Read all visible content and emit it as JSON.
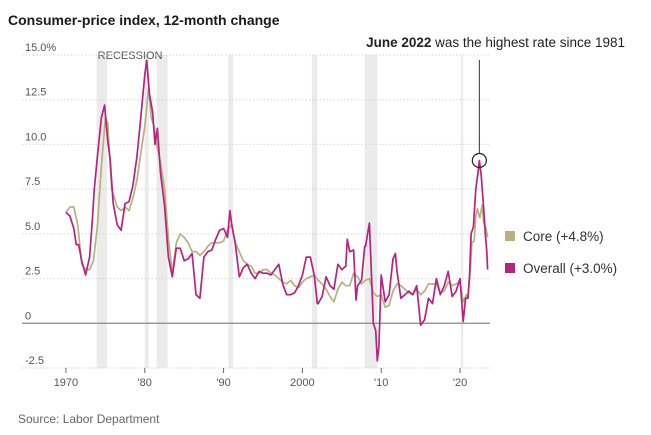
{
  "chart_data": {
    "type": "line",
    "title": "Consumer-price index, 12-month change",
    "xlabel": "",
    "ylabel": "",
    "xlim": [
      1969.5,
      2023.8
    ],
    "ylim": [
      -2.5,
      15
    ],
    "y_ticks": [
      -2.5,
      0,
      2.5,
      5,
      7.5,
      10,
      12.5,
      15
    ],
    "y_tick_labels": [
      "-2.5",
      "0",
      "2.5",
      "5.0",
      "7.5",
      "10.0",
      "12.5",
      "15.0%"
    ],
    "x_ticks": [
      1970,
      1980,
      1990,
      2000,
      2010,
      2020
    ],
    "x_tick_labels": [
      "1970",
      "'80",
      "'90",
      "2000",
      "'10",
      "'20"
    ],
    "grid": true,
    "recession_label": "RECESSION",
    "recessions": [
      [
        1973.9,
        1975.2
      ],
      [
        1980.0,
        1980.5
      ],
      [
        1981.5,
        1982.9
      ],
      [
        1990.6,
        1991.2
      ],
      [
        2001.2,
        2001.9
      ],
      [
        2007.9,
        2009.5
      ],
      [
        2020.1,
        2020.4
      ]
    ],
    "annotation": {
      "bold": "June 2022",
      "text": " was the highest rate since 1981",
      "x": 2022.45,
      "y": 9.1
    },
    "series": [
      {
        "name": "Core",
        "legend_label": "Core (+4.8%)",
        "color": "#b8b07f",
        "points": [
          [
            1970,
            6.2
          ],
          [
            1970.5,
            6.5
          ],
          [
            1971,
            6.5
          ],
          [
            1971.5,
            5.5
          ],
          [
            1972,
            3.3
          ],
          [
            1972.5,
            3.0
          ],
          [
            1973,
            3.0
          ],
          [
            1973.5,
            3.5
          ],
          [
            1974,
            5.5
          ],
          [
            1974.5,
            8.8
          ],
          [
            1975,
            11.5
          ],
          [
            1975.3,
            11.2
          ],
          [
            1975.8,
            7.5
          ],
          [
            1976.5,
            6.5
          ],
          [
            1977,
            6.3
          ],
          [
            1977.5,
            6.5
          ],
          [
            1978,
            6.3
          ],
          [
            1978.5,
            7.0
          ],
          [
            1979,
            8.0
          ],
          [
            1979.5,
            9.5
          ],
          [
            1980,
            11.0
          ],
          [
            1980.5,
            13.2
          ],
          [
            1980.8,
            11.5
          ],
          [
            1981.2,
            11.0
          ],
          [
            1981.5,
            10.0
          ],
          [
            1982,
            9.0
          ],
          [
            1982.5,
            7.5
          ],
          [
            1983,
            4.8
          ],
          [
            1983.5,
            2.8
          ],
          [
            1984,
            4.5
          ],
          [
            1984.5,
            5.0
          ],
          [
            1985,
            4.8
          ],
          [
            1985.5,
            4.5
          ],
          [
            1986,
            4.0
          ],
          [
            1986.5,
            4.0
          ],
          [
            1987,
            3.8
          ],
          [
            1987.5,
            4.0
          ],
          [
            1988,
            4.3
          ],
          [
            1988.5,
            4.5
          ],
          [
            1989,
            4.5
          ],
          [
            1989.5,
            4.5
          ],
          [
            1990,
            4.6
          ],
          [
            1990.5,
            5.2
          ],
          [
            1991,
            5.5
          ],
          [
            1991.5,
            4.5
          ],
          [
            1992,
            4.0
          ],
          [
            1992.5,
            3.5
          ],
          [
            1993,
            3.3
          ],
          [
            1993.5,
            3.2
          ],
          [
            1994,
            2.8
          ],
          [
            1994.5,
            2.8
          ],
          [
            1995,
            3.0
          ],
          [
            1995.5,
            3.0
          ],
          [
            1996,
            2.8
          ],
          [
            1996.5,
            2.7
          ],
          [
            1997,
            2.5
          ],
          [
            1997.5,
            2.3
          ],
          [
            1998,
            2.2
          ],
          [
            1998.5,
            2.4
          ],
          [
            1999,
            2.1
          ],
          [
            1999.5,
            2.0
          ],
          [
            2000,
            2.3
          ],
          [
            2000.5,
            2.5
          ],
          [
            2001,
            2.6
          ],
          [
            2001.5,
            2.7
          ],
          [
            2002,
            2.4
          ],
          [
            2002.5,
            2.2
          ],
          [
            2003,
            1.9
          ],
          [
            2003.5,
            1.5
          ],
          [
            2004,
            1.2
          ],
          [
            2004.5,
            1.9
          ],
          [
            2005,
            2.3
          ],
          [
            2005.5,
            2.1
          ],
          [
            2006,
            2.1
          ],
          [
            2006.5,
            2.8
          ],
          [
            2007,
            2.6
          ],
          [
            2007.5,
            2.2
          ],
          [
            2008,
            2.4
          ],
          [
            2008.5,
            2.5
          ],
          [
            2009,
            1.7
          ],
          [
            2009.5,
            1.5
          ],
          [
            2010,
            1.6
          ],
          [
            2010.5,
            0.9
          ],
          [
            2011,
            1.0
          ],
          [
            2011.5,
            1.8
          ],
          [
            2012,
            2.2
          ],
          [
            2012.5,
            2.1
          ],
          [
            2013,
            1.9
          ],
          [
            2013.5,
            1.7
          ],
          [
            2014,
            1.6
          ],
          [
            2014.5,
            1.9
          ],
          [
            2015,
            1.6
          ],
          [
            2015.5,
            1.8
          ],
          [
            2016,
            2.2
          ],
          [
            2016.5,
            2.2
          ],
          [
            2017,
            2.2
          ],
          [
            2017.5,
            1.7
          ],
          [
            2018,
            1.8
          ],
          [
            2018.5,
            2.3
          ],
          [
            2019,
            2.1
          ],
          [
            2019.5,
            2.2
          ],
          [
            2020,
            2.3
          ],
          [
            2020.4,
            1.2
          ],
          [
            2020.8,
            1.6
          ],
          [
            2021,
            1.4
          ],
          [
            2021.3,
            3.0
          ],
          [
            2021.5,
            4.5
          ],
          [
            2021.8,
            4.6
          ],
          [
            2022,
            6.0
          ],
          [
            2022.2,
            6.4
          ],
          [
            2022.5,
            5.9
          ],
          [
            2022.8,
            6.6
          ],
          [
            2023,
            5.6
          ],
          [
            2023.3,
            5.3
          ],
          [
            2023.5,
            4.8
          ]
        ]
      },
      {
        "name": "Overall",
        "legend_label": "Overall (+3.0%)",
        "color": "#b8237e",
        "points": [
          [
            1970,
            6.2
          ],
          [
            1970.5,
            6.0
          ],
          [
            1971,
            5.3
          ],
          [
            1971.3,
            4.4
          ],
          [
            1971.6,
            4.4
          ],
          [
            1972,
            3.5
          ],
          [
            1972.5,
            2.7
          ],
          [
            1973,
            3.7
          ],
          [
            1973.3,
            5.5
          ],
          [
            1973.6,
            7.5
          ],
          [
            1974,
            9.4
          ],
          [
            1974.5,
            11.5
          ],
          [
            1974.9,
            12.2
          ],
          [
            1975.3,
            10.2
          ],
          [
            1975.6,
            9.2
          ],
          [
            1976,
            6.7
          ],
          [
            1976.5,
            5.5
          ],
          [
            1977,
            5.2
          ],
          [
            1977.5,
            6.7
          ],
          [
            1978,
            6.8
          ],
          [
            1978.5,
            7.7
          ],
          [
            1979,
            9.3
          ],
          [
            1979.5,
            11.5
          ],
          [
            1980,
            13.9
          ],
          [
            1980.25,
            14.7
          ],
          [
            1980.6,
            12.8
          ],
          [
            1981,
            11.8
          ],
          [
            1981.3,
            10.0
          ],
          [
            1981.6,
            10.9
          ],
          [
            1982,
            8.4
          ],
          [
            1982.5,
            6.6
          ],
          [
            1983,
            3.7
          ],
          [
            1983.5,
            2.6
          ],
          [
            1984,
            4.2
          ],
          [
            1984.5,
            4.2
          ],
          [
            1985,
            3.5
          ],
          [
            1985.5,
            3.6
          ],
          [
            1986,
            3.9
          ],
          [
            1986.5,
            1.6
          ],
          [
            1987,
            1.4
          ],
          [
            1987.5,
            3.7
          ],
          [
            1988,
            4.0
          ],
          [
            1988.5,
            4.1
          ],
          [
            1989,
            4.7
          ],
          [
            1989.5,
            5.2
          ],
          [
            1990,
            5.3
          ],
          [
            1990.5,
            4.8
          ],
          [
            1990.8,
            6.3
          ],
          [
            1991,
            5.6
          ],
          [
            1991.5,
            4.4
          ],
          [
            1992,
            2.6
          ],
          [
            1992.5,
            3.1
          ],
          [
            1993,
            3.3
          ],
          [
            1993.5,
            2.8
          ],
          [
            1994,
            2.5
          ],
          [
            1994.5,
            2.9
          ],
          [
            1995,
            2.8
          ],
          [
            1995.5,
            2.8
          ],
          [
            1996,
            2.7
          ],
          [
            1996.5,
            3.0
          ],
          [
            1997,
            3.3
          ],
          [
            1997.5,
            2.2
          ],
          [
            1998,
            1.6
          ],
          [
            1998.5,
            1.6
          ],
          [
            1999,
            1.7
          ],
          [
            1999.5,
            2.1
          ],
          [
            2000,
            2.7
          ],
          [
            2000.5,
            3.7
          ],
          [
            2001,
            3.7
          ],
          [
            2001.5,
            2.7
          ],
          [
            2001.9,
            1.1
          ],
          [
            2002,
            1.1
          ],
          [
            2002.5,
            1.5
          ],
          [
            2003,
            2.6
          ],
          [
            2003.5,
            2.1
          ],
          [
            2004,
            1.9
          ],
          [
            2004.5,
            3.3
          ],
          [
            2005,
            3.0
          ],
          [
            2005.5,
            3.2
          ],
          [
            2005.7,
            4.7
          ],
          [
            2006,
            4.0
          ],
          [
            2006.5,
            4.1
          ],
          [
            2006.8,
            1.3
          ],
          [
            2007,
            2.1
          ],
          [
            2007.5,
            2.4
          ],
          [
            2007.9,
            4.3
          ],
          [
            2008,
            4.3
          ],
          [
            2008.5,
            5.6
          ],
          [
            2008.9,
            1.1
          ],
          [
            2009,
            0.0
          ],
          [
            2009.3,
            -0.4
          ],
          [
            2009.5,
            -2.1
          ],
          [
            2009.7,
            -1.3
          ],
          [
            2010,
            2.7
          ],
          [
            2010.5,
            1.2
          ],
          [
            2011,
            1.6
          ],
          [
            2011.5,
            3.6
          ],
          [
            2011.8,
            3.9
          ],
          [
            2012,
            2.9
          ],
          [
            2012.5,
            1.4
          ],
          [
            2013,
            1.6
          ],
          [
            2013.5,
            1.8
          ],
          [
            2014,
            1.6
          ],
          [
            2014.5,
            2.1
          ],
          [
            2015,
            -0.1
          ],
          [
            2015.5,
            0.2
          ],
          [
            2016,
            1.4
          ],
          [
            2016.5,
            1.1
          ],
          [
            2017,
            2.5
          ],
          [
            2017.5,
            1.6
          ],
          [
            2018,
            2.1
          ],
          [
            2018.5,
            2.9
          ],
          [
            2019,
            1.5
          ],
          [
            2019.5,
            1.8
          ],
          [
            2020,
            2.5
          ],
          [
            2020.4,
            0.1
          ],
          [
            2020.7,
            1.4
          ],
          [
            2021,
            1.4
          ],
          [
            2021.2,
            2.6
          ],
          [
            2021.4,
            5.0
          ],
          [
            2021.7,
            5.4
          ],
          [
            2022,
            7.5
          ],
          [
            2022.3,
            8.5
          ],
          [
            2022.45,
            9.1
          ],
          [
            2022.7,
            8.2
          ],
          [
            2023,
            6.4
          ],
          [
            2023.2,
            5.0
          ],
          [
            2023.4,
            4.0
          ],
          [
            2023.5,
            3.0
          ]
        ]
      }
    ]
  },
  "source_label": "Source: Labor Department"
}
